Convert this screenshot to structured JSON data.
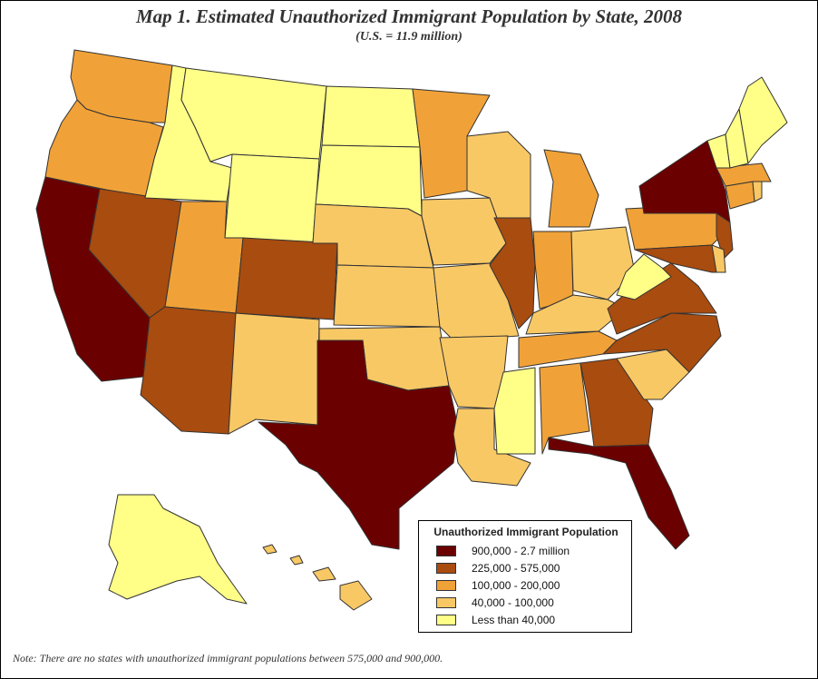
{
  "title": "Map 1. Estimated Unauthorized Immigrant Population by State, 2008",
  "subtitle": "(U.S. = 11.9 million)",
  "note": "Note: There are no states with unauthorized immigrant populations between 575,000 and 900,000.",
  "legend": {
    "title": "Unauthorized Immigrant Population",
    "items": [
      {
        "label": "900,000 - 2.7 million",
        "color": "#6b0000"
      },
      {
        "label": "225,000 - 575,000",
        "color": "#a84c10"
      },
      {
        "label": "100,000 - 200,000",
        "color": "#f0a238"
      },
      {
        "label": "40,000 - 100,000",
        "color": "#f8c865"
      },
      {
        "label": "Less than 40,000",
        "color": "#ffff88"
      }
    ]
  },
  "states": [
    {
      "name": "WA",
      "class": 2
    },
    {
      "name": "OR",
      "class": 2
    },
    {
      "name": "CA",
      "class": 0
    },
    {
      "name": "NV",
      "class": 1
    },
    {
      "name": "ID",
      "class": 4
    },
    {
      "name": "MT",
      "class": 4
    },
    {
      "name": "WY",
      "class": 4
    },
    {
      "name": "UT",
      "class": 2
    },
    {
      "name": "AZ",
      "class": 1
    },
    {
      "name": "CO",
      "class": 1
    },
    {
      "name": "NM",
      "class": 3
    },
    {
      "name": "ND",
      "class": 4
    },
    {
      "name": "SD",
      "class": 4
    },
    {
      "name": "NE",
      "class": 3
    },
    {
      "name": "KS",
      "class": 3
    },
    {
      "name": "OK",
      "class": 3
    },
    {
      "name": "TX",
      "class": 0
    },
    {
      "name": "MN",
      "class": 2
    },
    {
      "name": "IA",
      "class": 3
    },
    {
      "name": "MO",
      "class": 3
    },
    {
      "name": "AR",
      "class": 3
    },
    {
      "name": "LA",
      "class": 3
    },
    {
      "name": "WI",
      "class": 3
    },
    {
      "name": "IL",
      "class": 1
    },
    {
      "name": "MI",
      "class": 2
    },
    {
      "name": "IN",
      "class": 2
    },
    {
      "name": "OH",
      "class": 3
    },
    {
      "name": "KY",
      "class": 3
    },
    {
      "name": "TN",
      "class": 2
    },
    {
      "name": "MS",
      "class": 4
    },
    {
      "name": "AL",
      "class": 2
    },
    {
      "name": "GA",
      "class": 1
    },
    {
      "name": "FL",
      "class": 0
    },
    {
      "name": "SC",
      "class": 3
    },
    {
      "name": "NC",
      "class": 1
    },
    {
      "name": "VA",
      "class": 1
    },
    {
      "name": "WV",
      "class": 4
    },
    {
      "name": "PA",
      "class": 2
    },
    {
      "name": "NY",
      "class": 0
    },
    {
      "name": "NJ",
      "class": 1
    },
    {
      "name": "MD",
      "class": 1
    },
    {
      "name": "DE",
      "class": 3
    },
    {
      "name": "CT",
      "class": 2
    },
    {
      "name": "RI",
      "class": 3
    },
    {
      "name": "MA",
      "class": 2
    },
    {
      "name": "VT",
      "class": 4
    },
    {
      "name": "NH",
      "class": 4
    },
    {
      "name": "ME",
      "class": 4
    },
    {
      "name": "AK",
      "class": 4
    },
    {
      "name": "HI",
      "class": 3
    }
  ]
}
